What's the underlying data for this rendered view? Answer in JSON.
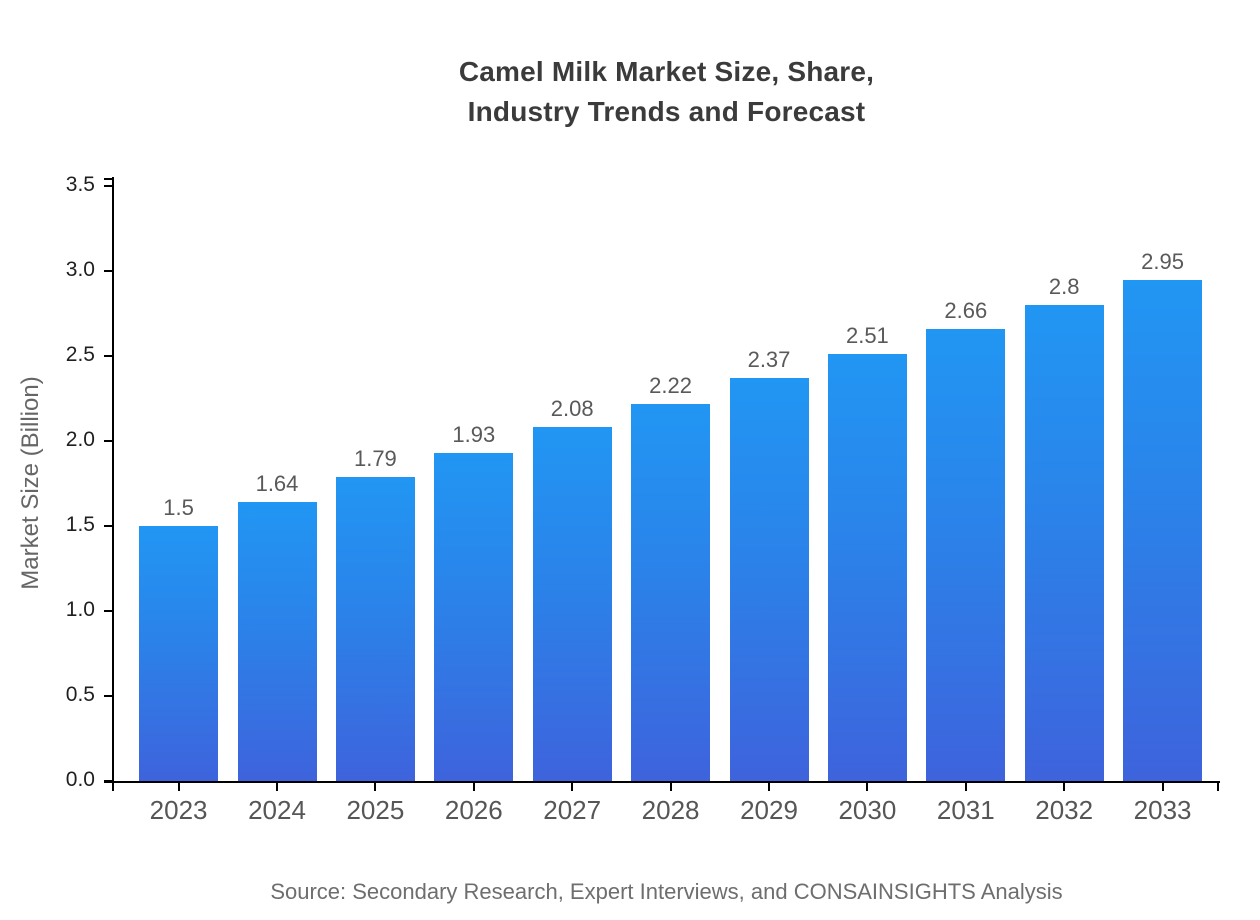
{
  "chart_data": {
    "type": "bar",
    "title": "Camel Milk Market Size, Share,\nIndustry Trends and Forecast",
    "categories": [
      "2023",
      "2024",
      "2025",
      "2026",
      "2027",
      "2028",
      "2029",
      "2030",
      "2031",
      "2032",
      "2033"
    ],
    "values": [
      1.5,
      1.64,
      1.79,
      1.93,
      2.08,
      2.22,
      2.37,
      2.51,
      2.66,
      2.8,
      2.95
    ],
    "value_labels": [
      "1.5",
      "1.64",
      "1.79",
      "1.93",
      "2.08",
      "2.22",
      "2.37",
      "2.51",
      "2.66",
      "2.8",
      "2.95"
    ],
    "xlabel": "",
    "ylabel": "Market Size (Billion)",
    "ylim": [
      0,
      3.5
    ],
    "ytick_labels": [
      "0.0",
      "0.5",
      "1.0",
      "1.5",
      "2.0",
      "2.5",
      "3.0",
      "3.5"
    ],
    "grid": false,
    "legend": "none",
    "bar_color_top": "#2196F3",
    "bar_color_bottom": "#3E63DC",
    "axis_color": "#000000"
  },
  "source_note": "Source: Secondary Research, Expert Interviews, and CONSAINSIGHTS Analysis"
}
